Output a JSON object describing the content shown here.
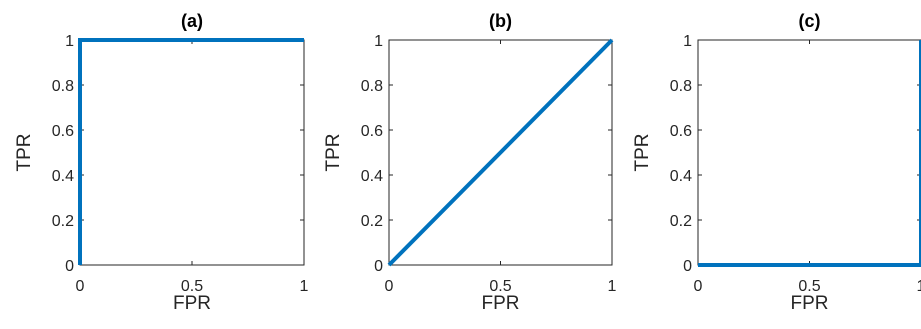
{
  "chart_data": [
    {
      "type": "line",
      "title": "(a)",
      "xlabel": "FPR",
      "ylabel": "TPR",
      "xlim": [
        0,
        1
      ],
      "ylim": [
        0,
        1
      ],
      "xticks": [
        "0",
        "0.5",
        "1"
      ],
      "yticks": [
        "0",
        "0.2",
        "0.4",
        "0.6",
        "0.8",
        "1"
      ],
      "grid": false,
      "series": [
        {
          "x": [
            0,
            0,
            1
          ],
          "y": [
            0,
            1,
            1
          ]
        }
      ]
    },
    {
      "type": "line",
      "title": "(b)",
      "xlabel": "FPR",
      "ylabel": "TPR",
      "xlim": [
        0,
        1
      ],
      "ylim": [
        0,
        1
      ],
      "xticks": [
        "0",
        "0.5",
        "1"
      ],
      "yticks": [
        "0",
        "0.2",
        "0.4",
        "0.6",
        "0.8",
        "1"
      ],
      "grid": false,
      "series": [
        {
          "x": [
            0,
            1
          ],
          "y": [
            0,
            1
          ]
        }
      ]
    },
    {
      "type": "line",
      "title": "(c)",
      "xlabel": "FPR",
      "ylabel": "TPR",
      "xlim": [
        0,
        1
      ],
      "ylim": [
        0,
        1
      ],
      "xticks": [
        "0",
        "0.5",
        "1"
      ],
      "yticks": [
        "0",
        "0.2",
        "0.4",
        "0.6",
        "0.8",
        "1"
      ],
      "grid": false,
      "series": [
        {
          "x": [
            0,
            1,
            1
          ],
          "y": [
            0,
            0,
            1
          ]
        }
      ]
    }
  ],
  "colors": {
    "line": "#0072BD",
    "axis": "#262626"
  }
}
